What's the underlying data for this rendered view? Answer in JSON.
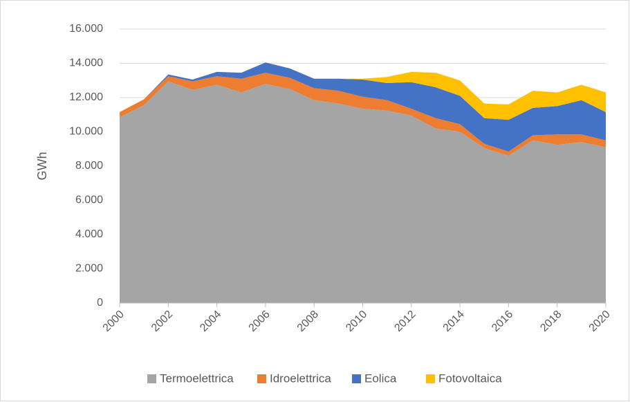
{
  "chart_data": {
    "type": "stacked-area",
    "y_label": "GWh",
    "x": [
      2000,
      2001,
      2002,
      2003,
      2004,
      2005,
      2006,
      2007,
      2008,
      2009,
      2010,
      2011,
      2012,
      2013,
      2014,
      2015,
      2016,
      2017,
      2018,
      2019,
      2020
    ],
    "xlim": [
      2000,
      2020
    ],
    "xticks": [
      2000,
      2002,
      2004,
      2006,
      2008,
      2010,
      2012,
      2014,
      2016,
      2018,
      2020
    ],
    "ylim": [
      0,
      16000
    ],
    "yticks": [
      0,
      {
        "value": 2000,
        "label": "2.000"
      },
      {
        "value": 4000,
        "label": "4.000"
      },
      {
        "value": 6000,
        "label": "6.000"
      },
      {
        "value": 8000,
        "label": "8.000"
      },
      {
        "value": 10000,
        "label": "10.000"
      },
      {
        "value": 12000,
        "label": "12.000"
      },
      {
        "value": 14000,
        "label": "14.000"
      },
      {
        "value": 16000,
        "label": "16.000"
      }
    ],
    "grid": true,
    "legend": "bottom",
    "series": [
      {
        "name": "Termoelettrica",
        "color": "#a5a5a5",
        "values": [
          10850,
          11550,
          12950,
          12450,
          12750,
          12300,
          12800,
          12500,
          11850,
          11650,
          11350,
          11250,
          10950,
          10200,
          10000,
          9050,
          8600,
          9500,
          9250,
          9400,
          9100
        ]
      },
      {
        "name": "Idroelettrica",
        "color": "#ed7d31",
        "values": [
          300,
          350,
          300,
          500,
          500,
          800,
          650,
          650,
          700,
          750,
          700,
          600,
          400,
          600,
          450,
          250,
          250,
          300,
          600,
          450,
          400
        ]
      },
      {
        "name": "Eolica",
        "color": "#4472c4",
        "values": [
          0,
          0,
          100,
          100,
          250,
          350,
          600,
          550,
          550,
          700,
          1000,
          1000,
          1550,
          1800,
          1650,
          1500,
          1850,
          1600,
          1650,
          2000,
          1650
        ]
      },
      {
        "name": "Fotovoltaica",
        "color": "#ffc000",
        "values": [
          0,
          0,
          0,
          0,
          0,
          0,
          0,
          0,
          0,
          0,
          50,
          350,
          600,
          850,
          900,
          850,
          900,
          1000,
          800,
          900,
          1150
        ]
      }
    ]
  }
}
